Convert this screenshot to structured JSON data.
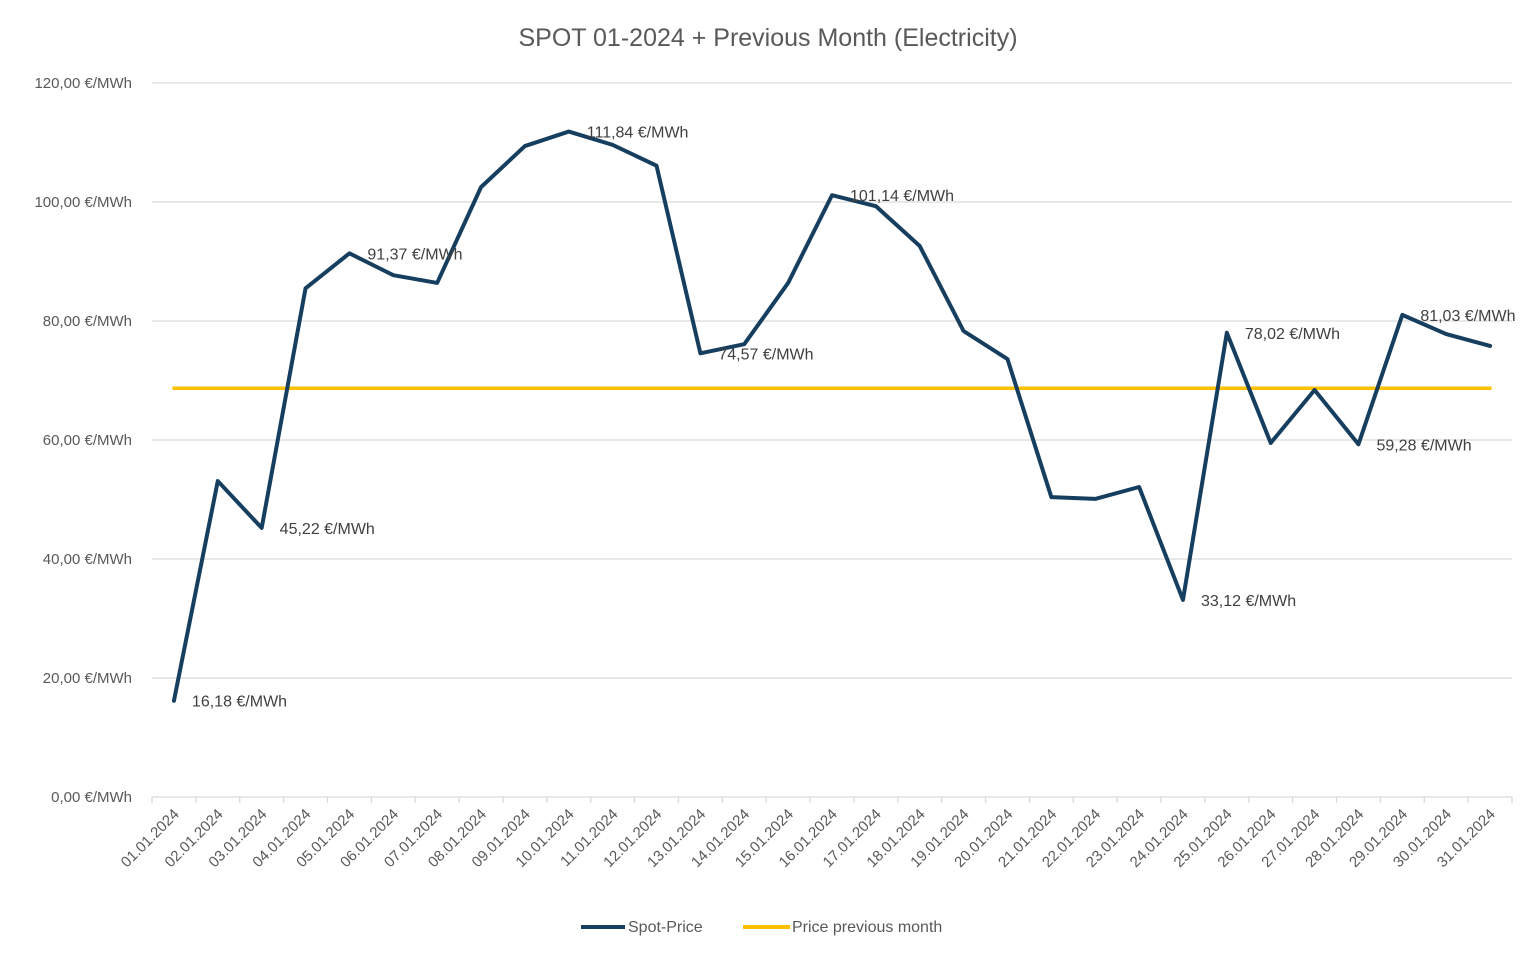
{
  "chart_data": {
    "type": "line",
    "title": "SPOT 01-2024 + Previous Month (Electricity)",
    "xlabel": "",
    "ylabel": "",
    "ylim": [
      0,
      120
    ],
    "ytick_step": 20,
    "ytick_labels": [
      "0,00 €/MWh",
      "20,00 €/MWh",
      "40,00 €/MWh",
      "60,00 €/MWh",
      "80,00 €/MWh",
      "100,00 €/MWh",
      "120,00 €/MWh"
    ],
    "grid": true,
    "legend_position": "bottom",
    "categories": [
      "01.01.2024",
      "02.01.2024",
      "03.01.2024",
      "04.01.2024",
      "05.01.2024",
      "06.01.2024",
      "07.01.2024",
      "08.01.2024",
      "09.01.2024",
      "10.01.2024",
      "11.01.2024",
      "12.01.2024",
      "13.01.2024",
      "14.01.2024",
      "15.01.2024",
      "16.01.2024",
      "17.01.2024",
      "18.01.2024",
      "19.01.2024",
      "20.01.2024",
      "21.01.2024",
      "22.01.2024",
      "23.01.2024",
      "24.01.2024",
      "25.01.2024",
      "26.01.2024",
      "27.01.2024",
      "28.01.2024",
      "29.01.2024",
      "30.01.2024",
      "31.01.2024"
    ],
    "series": [
      {
        "name": "Spot-Price",
        "color": "#163e5f",
        "values": [
          16.18,
          53.1,
          45.22,
          85.5,
          91.37,
          87.7,
          86.4,
          102.5,
          109.4,
          111.84,
          109.6,
          106.1,
          74.57,
          76.1,
          86.4,
          101.14,
          99.3,
          92.6,
          78.3,
          73.6,
          50.4,
          50.1,
          52.1,
          33.12,
          78.02,
          59.5,
          68.4,
          59.28,
          81.03,
          77.8,
          75.8
        ]
      },
      {
        "name": "Price previous month",
        "color": "#ffc000",
        "values": [
          68.7,
          68.7,
          68.7,
          68.7,
          68.7,
          68.7,
          68.7,
          68.7,
          68.7,
          68.7,
          68.7,
          68.7,
          68.7,
          68.7,
          68.7,
          68.7,
          68.7,
          68.7,
          68.7,
          68.7,
          68.7,
          68.7,
          68.7,
          68.7,
          68.7,
          68.7,
          68.7,
          68.7,
          68.7,
          68.7,
          68.7
        ]
      }
    ],
    "annotations": [
      {
        "index": 0,
        "text": "16,18 €/MWh",
        "pos": "below-right"
      },
      {
        "index": 2,
        "text": "45,22 €/MWh",
        "pos": "right"
      },
      {
        "index": 4,
        "text": "91,37 €/MWh",
        "pos": "right"
      },
      {
        "index": 9,
        "text": "111,84 €/MWh",
        "pos": "right"
      },
      {
        "index": 12,
        "text": "74,57 €/MWh",
        "pos": "right"
      },
      {
        "index": 15,
        "text": "101,14 €/MWh",
        "pos": "right"
      },
      {
        "index": 23,
        "text": "33,12 €/MWh",
        "pos": "right"
      },
      {
        "index": 24,
        "text": "78,02 €/MWh",
        "pos": "right"
      },
      {
        "index": 27,
        "text": "59,28 €/MWh",
        "pos": "right"
      },
      {
        "index": 28,
        "text": "81,03 €/MWh",
        "pos": "right"
      }
    ]
  }
}
